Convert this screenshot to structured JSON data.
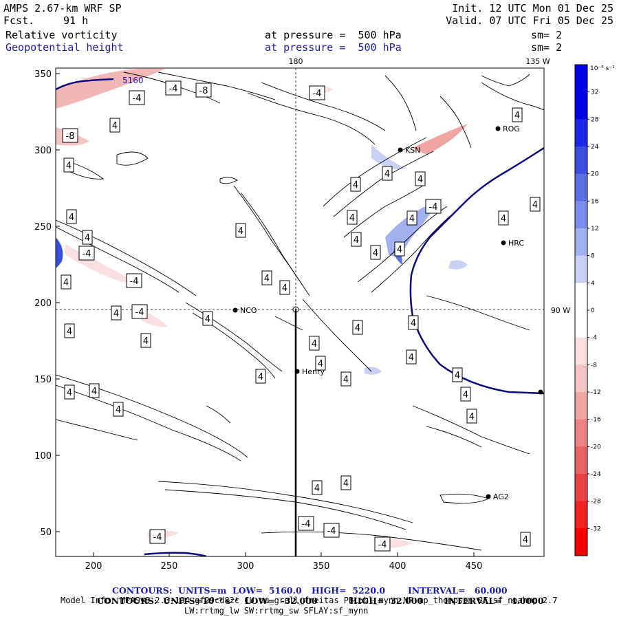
{
  "header": {
    "model": "AMPS 2.67-km WRF SP",
    "fcst_label": "Fcst.",
    "fcst_value": "91 h",
    "init": "Init. 12 UTC Mon 01 Dec 25",
    "valid": "Valid. 07 UTC Fri 05 Dec 25",
    "field1": "Relative vorticity",
    "field1_level": "at pressure =  500 hPa",
    "field1_sm": "sm= 2",
    "field2": "Geopotential height",
    "field2_level": "at pressure =  500 hPa",
    "field2_sm": "sm= 2"
  },
  "map": {
    "x_ticks": [
      "200",
      "250",
      "300",
      "350",
      "400",
      "450"
    ],
    "y_ticks": [
      "350",
      "300",
      "250",
      "200",
      "150",
      "100",
      "50"
    ],
    "lon_labels": {
      "top_180": "180",
      "top_135w": "135 W",
      "right_90w": "90 W"
    },
    "stations": [
      {
        "id": "nco",
        "label": "NCO"
      },
      {
        "id": "henry",
        "label": "Henry"
      },
      {
        "id": "ksn",
        "label": "KSN"
      },
      {
        "id": "rog",
        "label": "ROG"
      },
      {
        "id": "hrc",
        "label": "HRC"
      },
      {
        "id": "ag2",
        "label": "AG2"
      }
    ],
    "height_label": "5160",
    "contour_labels": {
      "pos": "4",
      "neg4": "-4",
      "neg8": "-8"
    }
  },
  "colorbar": {
    "unit": "10⁻⁵ s⁻¹",
    "labels": [
      "32",
      "28",
      "24",
      "20",
      "16",
      "12",
      "8",
      "4",
      "0",
      "-4",
      "-8",
      "-12",
      "-16",
      "-20",
      "-24",
      "-28",
      "-32"
    ],
    "colors": [
      "#0000e6",
      "#1c29e8",
      "#3a4fe0",
      "#5a6fe0",
      "#7d8ee8",
      "#a2b0ef",
      "#c8d0f5",
      "#ffffff",
      "#ffffff",
      "#f8e0e0",
      "#f4c4c4",
      "#f0a4a4",
      "#ec8484",
      "#e86464",
      "#ea4242",
      "#f02222",
      "#fa0000"
    ]
  },
  "footer": {
    "line1_label": "CONTOURS:  UNITS=m  LOW=  5160.0",
    "line1_high": "HIGH=  5220.0",
    "line1_interval": "INTERVAL=   60.000",
    "line2_label": "CONTOURS:  UNITS=10⁻⁵ s⁻¹  LOW=  -32.000",
    "line2_high": "HIGH=  32.000",
    "line2_interval": "INTERVAL=   4.0000",
    "model_info": "Model Info: MPASv8.2.3-194-gf29cd82c CU:cu_grell_freitas PBL:bl_mynn MP:mp_thompson SF:sf_noahmp 2.7",
    "model_info2": "LW:rrtmg_lw SW:rrtmg_sw SFLAY:sf_mynn"
  }
}
